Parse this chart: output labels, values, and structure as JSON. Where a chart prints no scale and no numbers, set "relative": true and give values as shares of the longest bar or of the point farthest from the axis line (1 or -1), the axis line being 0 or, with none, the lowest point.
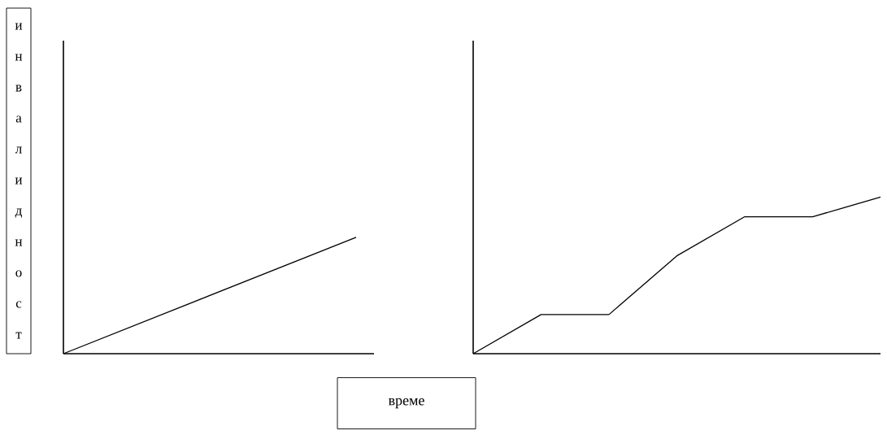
{
  "chart_data": [
    {
      "type": "line",
      "relative": true,
      "ylabel": "инвалидност",
      "xlabel": "време",
      "categories": [
        null,
        null
      ],
      "values": [
        0,
        1
      ],
      "color": "#000000"
    },
    {
      "type": "line",
      "relative": true,
      "categories": [
        null,
        null,
        null,
        null,
        null,
        null,
        null
      ],
      "values": [
        0,
        0.25,
        0.25,
        0.625,
        0.875,
        0.875,
        1
      ],
      "color": "#000000"
    }
  ]
}
